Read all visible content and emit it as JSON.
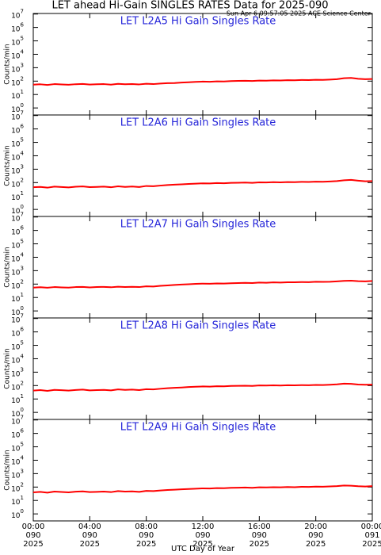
{
  "title": "LET ahead Hi-Gain SINGLES RATES Data for 2025-090",
  "timestamp": "Sun Apr  6 09:57:05 2025 ACE Science Center",
  "x_label": "UTC Day of Year",
  "chart_data": [
    {
      "type": "line",
      "title": "LET L2A5 Hi Gain Singles Rate",
      "ylabel": "Counts/min",
      "log_y": true,
      "color": "#ff0000",
      "xlim": [
        0,
        24
      ],
      "xticks": [
        0,
        4,
        8,
        12,
        16,
        20,
        24
      ],
      "ylim": [
        0.3,
        11000000
      ],
      "yticks": [
        {
          "value": 1,
          "base": "10",
          "exp": "0"
        },
        {
          "value": 10,
          "base": "10",
          "exp": "1"
        },
        {
          "value": 100,
          "base": "10",
          "exp": "2"
        },
        {
          "value": 1000,
          "base": "10",
          "exp": "3"
        },
        {
          "value": 10000,
          "base": "10",
          "exp": "4"
        },
        {
          "value": 100000,
          "base": "10",
          "exp": "5"
        },
        {
          "value": 1000000,
          "base": "10",
          "exp": "6"
        },
        {
          "value": 10000000,
          "base": "10",
          "exp": "7"
        }
      ],
      "x": [
        0,
        0.5,
        1,
        1.5,
        2,
        2.5,
        3,
        3.5,
        4,
        4.5,
        5,
        5.5,
        6,
        6.5,
        7,
        7.5,
        8,
        8.5,
        9,
        9.5,
        10,
        10.5,
        11,
        11.5,
        12,
        12.5,
        13,
        13.5,
        14,
        14.5,
        15,
        15.5,
        16,
        16.5,
        17,
        17.5,
        18,
        18.5,
        19,
        19.5,
        20,
        20.5,
        21,
        21.5,
        22,
        22.5,
        23,
        23.5,
        24
      ],
      "values": [
        55,
        58,
        52,
        60,
        57,
        54,
        59,
        62,
        56,
        58,
        60,
        55,
        63,
        58,
        61,
        57,
        64,
        60,
        66,
        70,
        72,
        78,
        82,
        88,
        92,
        90,
        96,
        94,
        100,
        104,
        106,
        102,
        110,
        108,
        114,
        112,
        118,
        116,
        122,
        120,
        126,
        124,
        130,
        140,
        165,
        175,
        150,
        140,
        145
      ]
    },
    {
      "type": "line",
      "title": "LET L2A6 Hi Gain Singles Rate",
      "ylabel": "Counts/min",
      "log_y": true,
      "color": "#ff0000",
      "xlim": [
        0,
        24
      ],
      "xticks": [
        0,
        4,
        8,
        12,
        16,
        20,
        24
      ],
      "ylim": [
        0.3,
        11000000
      ],
      "yticks": [
        {
          "value": 1,
          "base": "10",
          "exp": "0"
        },
        {
          "value": 10,
          "base": "10",
          "exp": "1"
        },
        {
          "value": 100,
          "base": "10",
          "exp": "2"
        },
        {
          "value": 1000,
          "base": "10",
          "exp": "3"
        },
        {
          "value": 10000,
          "base": "10",
          "exp": "4"
        },
        {
          "value": 100000,
          "base": "10",
          "exp": "5"
        },
        {
          "value": 1000000,
          "base": "10",
          "exp": "6"
        },
        {
          "value": 10000000,
          "base": "10",
          "exp": "7"
        }
      ],
      "x": [
        0,
        0.5,
        1,
        1.5,
        2,
        2.5,
        3,
        3.5,
        4,
        4.5,
        5,
        5.5,
        6,
        6.5,
        7,
        7.5,
        8,
        8.5,
        9,
        9.5,
        10,
        10.5,
        11,
        11.5,
        12,
        12.5,
        13,
        13.5,
        14,
        14.5,
        15,
        15.5,
        16,
        16.5,
        17,
        17.5,
        18,
        18.5,
        19,
        19.5,
        20,
        20.5,
        21,
        21.5,
        22,
        22.5,
        23,
        23.5,
        24
      ],
      "values": [
        45,
        48,
        42,
        50,
        47,
        44,
        49,
        52,
        46,
        48,
        50,
        45,
        53,
        48,
        51,
        47,
        56,
        54,
        60,
        66,
        70,
        74,
        80,
        84,
        88,
        86,
        92,
        90,
        96,
        98,
        100,
        96,
        104,
        102,
        108,
        104,
        110,
        108,
        114,
        112,
        118,
        116,
        122,
        130,
        150,
        160,
        140,
        125,
        130
      ]
    },
    {
      "type": "line",
      "title": "LET L2A7 Hi Gain Singles Rate",
      "ylabel": "Counts/min",
      "log_y": true,
      "color": "#ff0000",
      "xlim": [
        0,
        24
      ],
      "xticks": [
        0,
        4,
        8,
        12,
        16,
        20,
        24
      ],
      "ylim": [
        0.3,
        11000000
      ],
      "yticks": [
        {
          "value": 1,
          "base": "10",
          "exp": "0"
        },
        {
          "value": 10,
          "base": "10",
          "exp": "1"
        },
        {
          "value": 100,
          "base": "10",
          "exp": "2"
        },
        {
          "value": 1000,
          "base": "10",
          "exp": "3"
        },
        {
          "value": 10000,
          "base": "10",
          "exp": "4"
        },
        {
          "value": 100000,
          "base": "10",
          "exp": "5"
        },
        {
          "value": 1000000,
          "base": "10",
          "exp": "6"
        },
        {
          "value": 10000000,
          "base": "10",
          "exp": "7"
        }
      ],
      "x": [
        0,
        0.5,
        1,
        1.5,
        2,
        2.5,
        3,
        3.5,
        4,
        4.5,
        5,
        5.5,
        6,
        6.5,
        7,
        7.5,
        8,
        8.5,
        9,
        9.5,
        10,
        10.5,
        11,
        11.5,
        12,
        12.5,
        13,
        13.5,
        14,
        14.5,
        15,
        15.5,
        16,
        16.5,
        17,
        17.5,
        18,
        18.5,
        19,
        19.5,
        20,
        20.5,
        21,
        21.5,
        22,
        22.5,
        23,
        23.5,
        24
      ],
      "values": [
        55,
        58,
        54,
        60,
        57,
        55,
        60,
        62,
        57,
        60,
        62,
        58,
        64,
        60,
        63,
        60,
        68,
        66,
        74,
        80,
        86,
        92,
        98,
        104,
        108,
        106,
        112,
        110,
        116,
        120,
        124,
        120,
        130,
        126,
        134,
        130,
        138,
        136,
        142,
        140,
        148,
        146,
        150,
        160,
        175,
        180,
        165,
        160,
        170
      ]
    },
    {
      "type": "line",
      "title": "LET L2A8 Hi Gain Singles Rate",
      "ylabel": "Counts/min",
      "log_y": true,
      "color": "#ff0000",
      "xlim": [
        0,
        24
      ],
      "xticks": [
        0,
        4,
        8,
        12,
        16,
        20,
        24
      ],
      "ylim": [
        0.3,
        11000000
      ],
      "yticks": [
        {
          "value": 1,
          "base": "10",
          "exp": "0"
        },
        {
          "value": 10,
          "base": "10",
          "exp": "1"
        },
        {
          "value": 100,
          "base": "10",
          "exp": "2"
        },
        {
          "value": 1000,
          "base": "10",
          "exp": "3"
        },
        {
          "value": 10000,
          "base": "10",
          "exp": "4"
        },
        {
          "value": 100000,
          "base": "10",
          "exp": "5"
        },
        {
          "value": 1000000,
          "base": "10",
          "exp": "6"
        },
        {
          "value": 10000000,
          "base": "10",
          "exp": "7"
        }
      ],
      "x": [
        0,
        0.5,
        1,
        1.5,
        2,
        2.5,
        3,
        3.5,
        4,
        4.5,
        5,
        5.5,
        6,
        6.5,
        7,
        7.5,
        8,
        8.5,
        9,
        9.5,
        10,
        10.5,
        11,
        11.5,
        12,
        12.5,
        13,
        13.5,
        14,
        14.5,
        15,
        15.5,
        16,
        16.5,
        17,
        17.5,
        18,
        18.5,
        19,
        19.5,
        20,
        20.5,
        21,
        21.5,
        22,
        22.5,
        23,
        23.5,
        24
      ],
      "values": [
        42,
        46,
        40,
        48,
        45,
        42,
        47,
        50,
        44,
        46,
        48,
        44,
        52,
        48,
        50,
        46,
        54,
        52,
        58,
        64,
        68,
        72,
        78,
        82,
        86,
        84,
        90,
        88,
        94,
        96,
        98,
        94,
        102,
        100,
        104,
        100,
        106,
        104,
        108,
        106,
        112,
        110,
        116,
        124,
        140,
        135,
        120,
        115,
        118
      ]
    },
    {
      "type": "line",
      "title": "LET L2A9 Hi Gain Singles Rate",
      "ylabel": "Counts/min",
      "log_y": true,
      "color": "#ff0000",
      "xlim": [
        0,
        24
      ],
      "xticks": [
        {
          "value": 0,
          "label": "00:00",
          "day": "090",
          "year": "2025"
        },
        {
          "value": 4,
          "label": "04:00",
          "day": "090",
          "year": "2025"
        },
        {
          "value": 8,
          "label": "08:00",
          "day": "090",
          "year": "2025"
        },
        {
          "value": 12,
          "label": "12:00",
          "day": "090",
          "year": "2025"
        },
        {
          "value": 16,
          "label": "16:00",
          "day": "090",
          "year": "2025"
        },
        {
          "value": 20,
          "label": "20:00",
          "day": "090",
          "year": "2025"
        },
        {
          "value": 24,
          "label": "00:00",
          "day": "091",
          "year": "2025"
        }
      ],
      "ylim": [
        0.3,
        11000000
      ],
      "yticks": [
        {
          "value": 1,
          "base": "10",
          "exp": "0"
        },
        {
          "value": 10,
          "base": "10",
          "exp": "1"
        },
        {
          "value": 100,
          "base": "10",
          "exp": "2"
        },
        {
          "value": 1000,
          "base": "10",
          "exp": "3"
        },
        {
          "value": 10000,
          "base": "10",
          "exp": "4"
        },
        {
          "value": 100000,
          "base": "10",
          "exp": "5"
        },
        {
          "value": 1000000,
          "base": "10",
          "exp": "6"
        },
        {
          "value": 10000000,
          "base": "10",
          "exp": "7"
        }
      ],
      "x": [
        0,
        0.5,
        1,
        1.5,
        2,
        2.5,
        3,
        3.5,
        4,
        4.5,
        5,
        5.5,
        6,
        6.5,
        7,
        7.5,
        8,
        8.5,
        9,
        9.5,
        10,
        10.5,
        11,
        11.5,
        12,
        12.5,
        13,
        13.5,
        14,
        14.5,
        15,
        15.5,
        16,
        16.5,
        17,
        17.5,
        18,
        18.5,
        19,
        19.5,
        20,
        20.5,
        21,
        21.5,
        22,
        22.5,
        23,
        23.5,
        24
      ],
      "values": [
        40,
        44,
        38,
        46,
        43,
        40,
        45,
        48,
        42,
        44,
        46,
        42,
        50,
        46,
        48,
        44,
        52,
        50,
        56,
        60,
        64,
        68,
        72,
        76,
        80,
        78,
        84,
        82,
        88,
        90,
        92,
        88,
        96,
        94,
        98,
        96,
        100,
        98,
        104,
        102,
        108,
        106,
        112,
        118,
        130,
        125,
        115,
        110,
        118
      ]
    }
  ]
}
